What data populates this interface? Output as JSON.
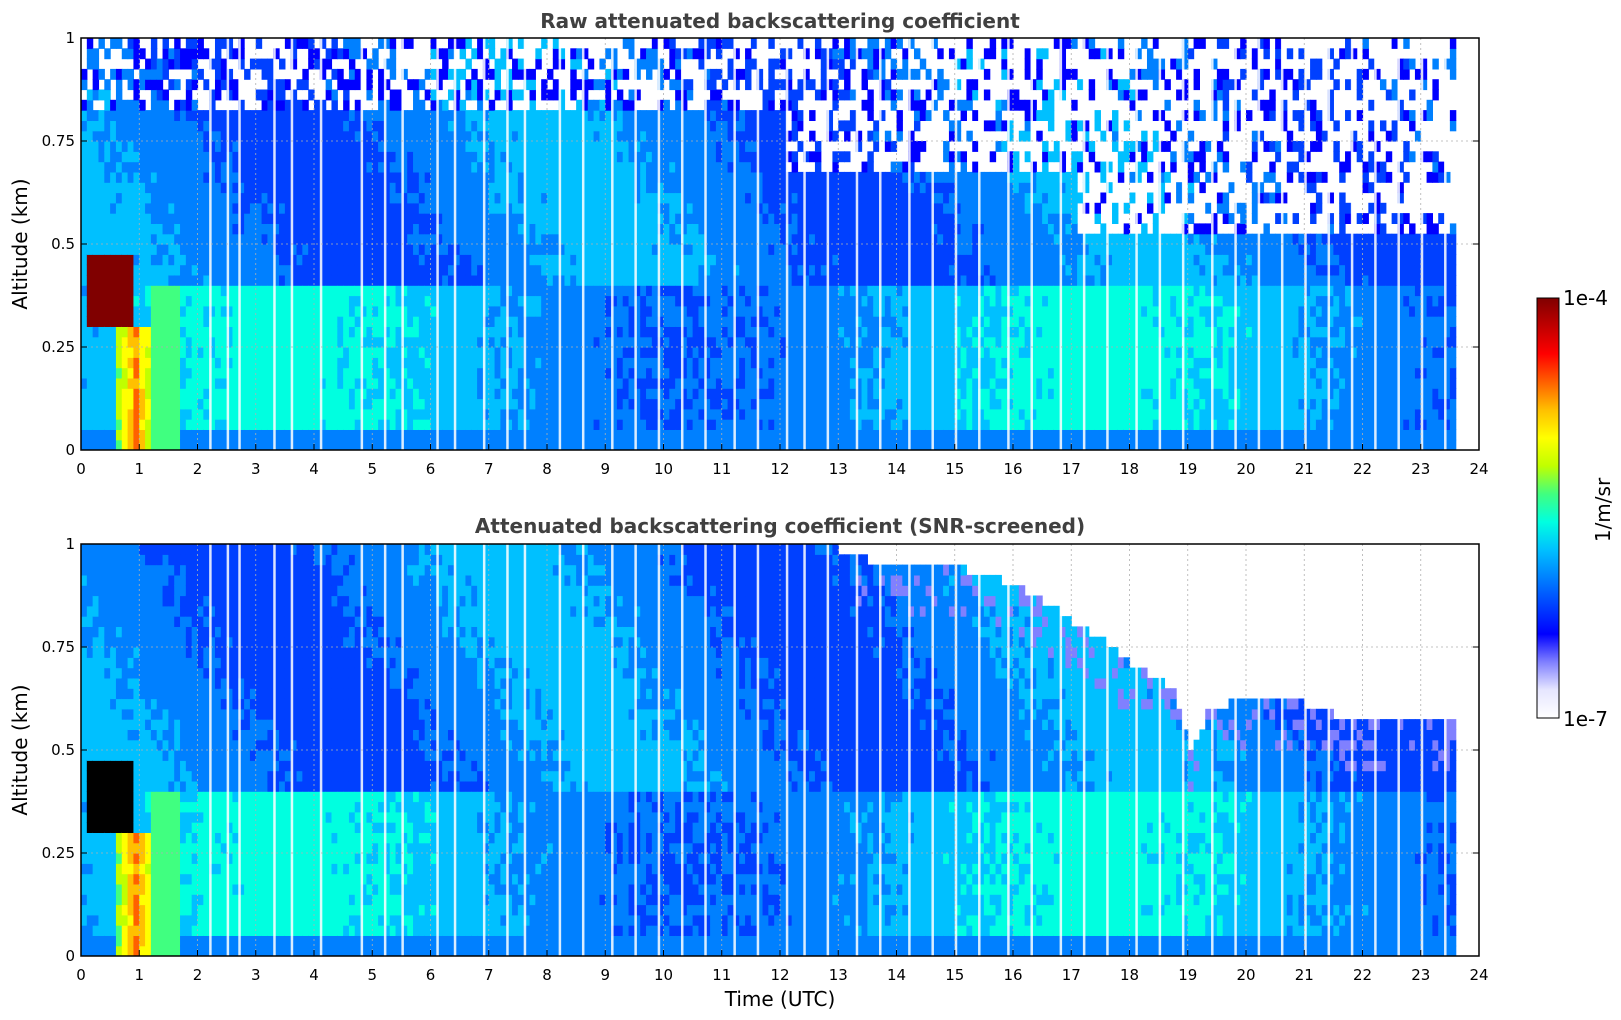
{
  "chart_data": [
    {
      "type": "heatmap",
      "title": "Raw attenuated backscattering coefficient",
      "xlabel": "",
      "ylabel": "Altitude (km)",
      "xlim": [
        0,
        24
      ],
      "ylim": [
        0,
        1
      ],
      "xticks": [
        "0",
        "1",
        "2",
        "3",
        "4",
        "5",
        "6",
        "7",
        "8",
        "9",
        "10",
        "11",
        "12",
        "13",
        "14",
        "15",
        "16",
        "17",
        "18",
        "19",
        "20",
        "21",
        "22",
        "23",
        "24"
      ],
      "yticks": [
        "0",
        "0.25",
        "0.5",
        "0.75",
        "1"
      ],
      "grid": true,
      "data_extent_hours": [
        0,
        23.6
      ],
      "features": {
        "surface_layer_top_km": 0.38,
        "noise_onset_km": 0.5,
        "early_aerosol_layer": {
          "x": [
            0.05,
            0.8
          ],
          "y": [
            0.28,
            0.45
          ],
          "level": "1e-4"
        },
        "plume": {
          "x": [
            0.7,
            1.1
          ],
          "y": [
            0.0,
            0.3
          ]
        }
      }
    },
    {
      "type": "heatmap",
      "title": "Attenuated backscattering coefficient (SNR-screened)",
      "xlabel": "Time (UTC)",
      "ylabel": "Altitude (km)",
      "xlim": [
        0,
        24
      ],
      "ylim": [
        0,
        1
      ],
      "xticks": [
        "0",
        "1",
        "2",
        "3",
        "4",
        "5",
        "6",
        "7",
        "8",
        "9",
        "10",
        "11",
        "12",
        "13",
        "14",
        "15",
        "16",
        "17",
        "18",
        "19",
        "20",
        "21",
        "22",
        "23",
        "24"
      ],
      "yticks": [
        "0",
        "0.25",
        "0.5",
        "0.75",
        "1"
      ],
      "grid": true,
      "data_extent_hours": [
        0,
        23.6
      ],
      "features": {
        "screened_top_km": [
          [
            0,
            1
          ],
          [
            12.5,
            1
          ],
          [
            13.5,
            0.95
          ],
          [
            15.5,
            0.92
          ],
          [
            16.5,
            0.85
          ],
          [
            17.2,
            0.78
          ],
          [
            18,
            0.7
          ],
          [
            18.7,
            0.64
          ],
          [
            19,
            0.48
          ],
          [
            19.3,
            0.58
          ],
          [
            20,
            0.62
          ],
          [
            21,
            0.6
          ],
          [
            22,
            0.55
          ],
          [
            23,
            0.55
          ],
          [
            23.6,
            0.56
          ]
        ],
        "early_aerosol_layer": {
          "x": [
            0.05,
            0.8
          ],
          "y": [
            0.28,
            0.45
          ],
          "level": "saturated"
        }
      }
    }
  ],
  "colorbar": {
    "label": "1/m/sr",
    "max_label": "1e-4",
    "min_label": "1e-7",
    "scale": "log",
    "colormap": [
      "#ffffff",
      "#e6e6ff",
      "#8080ff",
      "#0000ff",
      "#0040ff",
      "#0080ff",
      "#00c0ff",
      "#00ffe0",
      "#40ff80",
      "#c0ff00",
      "#ffff00",
      "#ffc000",
      "#ff6000",
      "#ff0000",
      "#c00000",
      "#800000"
    ]
  }
}
